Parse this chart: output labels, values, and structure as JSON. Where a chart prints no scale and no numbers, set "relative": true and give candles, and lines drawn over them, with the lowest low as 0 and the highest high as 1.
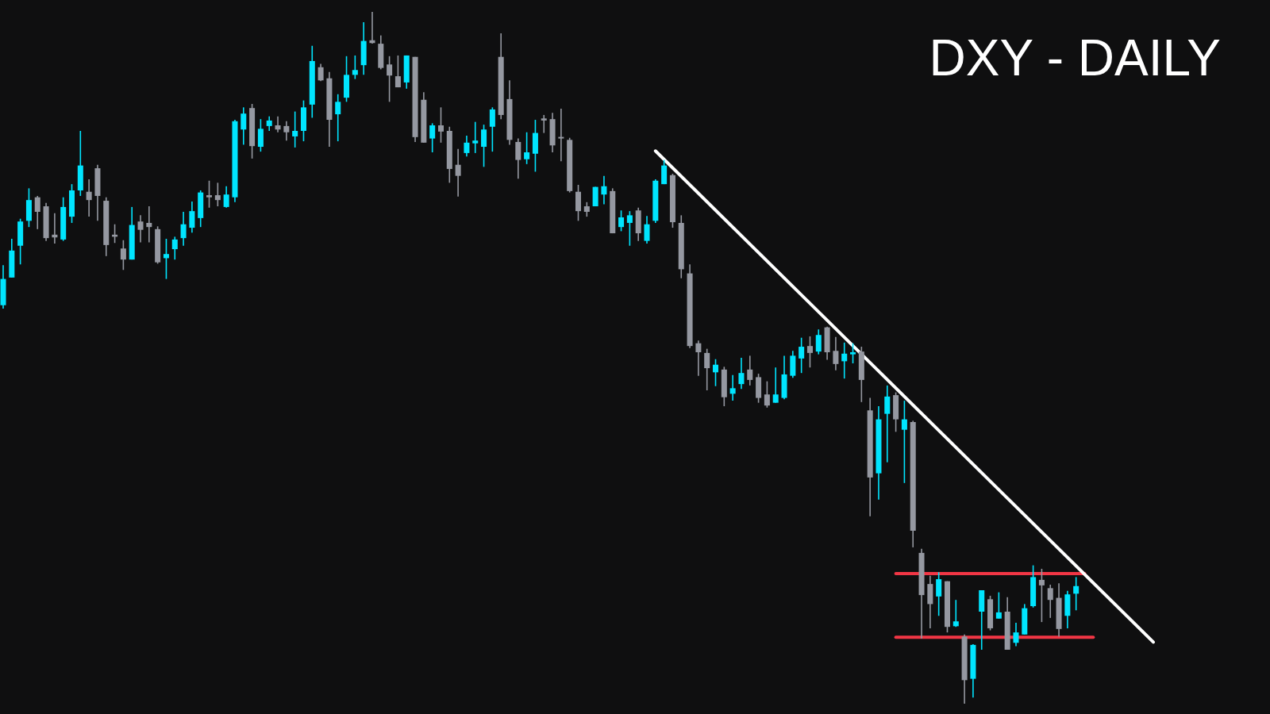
{
  "chart_data": {
    "type": "candlestick",
    "title": "DXY - DAILY",
    "relative": true,
    "tick_labels": false,
    "grid": false,
    "legend": false,
    "categories": [
      null,
      null,
      null,
      null,
      null,
      null,
      null,
      null,
      null,
      null,
      null,
      null,
      null,
      null,
      null,
      null,
      null,
      null,
      null,
      null,
      null,
      null,
      null,
      null,
      null,
      null,
      null,
      null,
      null,
      null,
      null,
      null,
      null,
      null,
      null,
      null,
      null,
      null,
      null,
      null,
      null,
      null,
      null,
      null,
      null,
      null,
      null,
      null,
      null,
      null,
      null,
      null,
      null,
      null,
      null,
      null,
      null,
      null,
      null,
      null,
      null,
      null,
      null,
      null,
      null,
      null,
      null,
      null,
      null,
      null,
      null,
      null,
      null,
      null,
      null,
      null,
      null,
      null,
      null,
      null,
      null,
      null,
      null,
      null,
      null,
      null,
      null,
      null,
      null,
      null,
      null,
      null,
      null,
      null,
      null,
      null,
      null,
      null,
      null,
      null,
      null,
      null,
      null,
      null,
      null,
      null,
      null,
      null,
      null,
      null,
      null,
      null,
      null,
      null,
      null,
      null,
      null,
      null,
      null,
      null,
      null,
      null,
      null,
      null,
      null,
      null,
      null,
      null,
      null,
      null,
      null,
      null,
      null,
      null,
      null
    ],
    "ohlc": [
      [
        0.576,
        0.634,
        0.571,
        0.614
      ],
      [
        0.616,
        0.672,
        0.616,
        0.655
      ],
      [
        0.662,
        0.701,
        0.635,
        0.697
      ],
      [
        0.698,
        0.745,
        0.689,
        0.728
      ],
      [
        0.732,
        0.734,
        0.686,
        0.711
      ],
      [
        0.719,
        0.724,
        0.669,
        0.673
      ],
      [
        0.678,
        0.709,
        0.665,
        0.674
      ],
      [
        0.671,
        0.732,
        0.669,
        0.718
      ],
      [
        0.704,
        0.751,
        0.695,
        0.742
      ],
      [
        0.742,
        0.828,
        0.734,
        0.778
      ],
      [
        0.74,
        0.758,
        0.704,
        0.728
      ],
      [
        0.774,
        0.779,
        0.698,
        0.734
      ],
      [
        0.727,
        0.732,
        0.647,
        0.663
      ],
      [
        0.678,
        0.693,
        0.666,
        0.675
      ],
      [
        0.658,
        0.67,
        0.627,
        0.642
      ],
      [
        0.642,
        0.718,
        0.642,
        0.692
      ],
      [
        0.697,
        0.706,
        0.667,
        0.685
      ],
      [
        0.695,
        0.719,
        0.667,
        0.689
      ],
      [
        0.686,
        0.69,
        0.636,
        0.638
      ],
      [
        0.644,
        0.672,
        0.614,
        0.65
      ],
      [
        0.657,
        0.675,
        0.642,
        0.671
      ],
      [
        0.673,
        0.711,
        0.662,
        0.693
      ],
      [
        0.688,
        0.726,
        0.681,
        0.712
      ],
      [
        0.702,
        0.742,
        0.689,
        0.739
      ],
      [
        0.735,
        0.756,
        0.717,
        0.732
      ],
      [
        0.735,
        0.753,
        0.719,
        0.728
      ],
      [
        0.718,
        0.748,
        0.717,
        0.736
      ],
      [
        0.732,
        0.844,
        0.725,
        0.842
      ],
      [
        0.83,
        0.862,
        0.808,
        0.853
      ],
      [
        0.861,
        0.867,
        0.788,
        0.806
      ],
      [
        0.805,
        0.845,
        0.798,
        0.831
      ],
      [
        0.835,
        0.849,
        0.828,
        0.843
      ],
      [
        0.836,
        0.849,
        0.826,
        0.83
      ],
      [
        0.835,
        0.842,
        0.814,
        0.826
      ],
      [
        0.82,
        0.856,
        0.804,
        0.828
      ],
      [
        0.828,
        0.872,
        0.813,
        0.862
      ],
      [
        0.866,
        0.951,
        0.847,
        0.929
      ],
      [
        0.92,
        0.925,
        0.9,
        0.901
      ],
      [
        0.904,
        0.913,
        0.805,
        0.844
      ],
      [
        0.852,
        0.881,
        0.813,
        0.87
      ],
      [
        0.876,
        0.936,
        0.87,
        0.909
      ],
      [
        0.909,
        0.937,
        0.903,
        0.916
      ],
      [
        0.923,
        0.985,
        0.909,
        0.958
      ],
      [
        0.959,
        1,
        0.954,
        0.955
      ],
      [
        0.954,
        0.966,
        0.917,
        0.919
      ],
      [
        0.924,
        0.936,
        0.87,
        0.908
      ],
      [
        0.907,
        0.937,
        0.891,
        0.891
      ],
      [
        0.898,
        0.937,
        0.889,
        0.937
      ],
      [
        0.935,
        0.935,
        0.812,
        0.819
      ],
      [
        0.873,
        0.884,
        0.811,
        0.811
      ],
      [
        0.817,
        0.839,
        0.797,
        0.836
      ],
      [
        0.836,
        0.862,
        0.811,
        0.827
      ],
      [
        0.828,
        0.834,
        0.753,
        0.773
      ],
      [
        0.779,
        0.802,
        0.733,
        0.763
      ],
      [
        0.796,
        0.821,
        0.791,
        0.811
      ],
      [
        0.81,
        0.841,
        0.796,
        0.814
      ],
      [
        0.805,
        0.837,
        0.776,
        0.83
      ],
      [
        0.834,
        0.862,
        0.798,
        0.859
      ],
      [
        0.935,
        0.969,
        0.845,
        0.851
      ],
      [
        0.874,
        0.901,
        0.808,
        0.815
      ],
      [
        0.812,
        0.817,
        0.759,
        0.786
      ],
      [
        0.787,
        0.826,
        0.78,
        0.797
      ],
      [
        0.795,
        0.844,
        0.769,
        0.825
      ],
      [
        0.846,
        0.851,
        0.825,
        0.843
      ],
      [
        0.845,
        0.854,
        0.797,
        0.807
      ],
      [
        0.818,
        0.86,
        0.784,
        0.817
      ],
      [
        0.815,
        0.818,
        0.739,
        0.741
      ],
      [
        0.74,
        0.75,
        0.698,
        0.712
      ],
      [
        0.719,
        0.725,
        0.704,
        0.711
      ],
      [
        0.719,
        0.747,
        0.719,
        0.747
      ],
      [
        0.736,
        0.763,
        0.722,
        0.748
      ],
      [
        0.741,
        0.745,
        0.68,
        0.68
      ],
      [
        0.689,
        0.713,
        0.683,
        0.703
      ],
      [
        0.695,
        0.712,
        0.662,
        0.706
      ],
      [
        0.713,
        0.717,
        0.669,
        0.68
      ],
      [
        0.669,
        0.705,
        0.665,
        0.693
      ],
      [
        0.698,
        0.758,
        0.695,
        0.756
      ],
      [
        0.751,
        0.786,
        0.751,
        0.778
      ],
      [
        0.764,
        0.766,
        0.688,
        0.696
      ],
      [
        0.695,
        0.706,
        0.615,
        0.628
      ],
      [
        0.622,
        0.635,
        0.514,
        0.517
      ],
      [
        0.521,
        0.525,
        0.474,
        0.508
      ],
      [
        0.507,
        0.513,
        0.453,
        0.485
      ],
      [
        0.479,
        0.498,
        0.459,
        0.49
      ],
      [
        0.483,
        0.487,
        0.43,
        0.443
      ],
      [
        0.448,
        0.475,
        0.438,
        0.456
      ],
      [
        0.462,
        0.5,
        0.455,
        0.478
      ],
      [
        0.483,
        0.503,
        0.46,
        0.468
      ],
      [
        0.472,
        0.477,
        0.435,
        0.442
      ],
      [
        0.447,
        0.466,
        0.428,
        0.431
      ],
      [
        0.435,
        0.486,
        0.435,
        0.447
      ],
      [
        0.442,
        0.503,
        0.44,
        0.476
      ],
      [
        0.474,
        0.51,
        0.471,
        0.503
      ],
      [
        0.499,
        0.529,
        0.478,
        0.516
      ],
      [
        0.517,
        0.531,
        0.486,
        0.507
      ],
      [
        0.509,
        0.541,
        0.505,
        0.533
      ],
      [
        0.544,
        0.545,
        0.497,
        0.508
      ],
      [
        0.51,
        0.53,
        0.482,
        0.491
      ],
      [
        0.495,
        0.522,
        0.47,
        0.506
      ],
      [
        0.505,
        0.521,
        0.492,
        0.508
      ],
      [
        0.509,
        0.516,
        0.436,
        0.468
      ],
      [
        0.424,
        0.442,
        0.271,
        0.327
      ],
      [
        0.333,
        0.43,
        0.295,
        0.411
      ],
      [
        0.419,
        0.46,
        0.349,
        0.444
      ],
      [
        0.446,
        0.45,
        0.393,
        0.411
      ],
      [
        0.396,
        0.438,
        0.319,
        0.411
      ],
      [
        0.407,
        0.409,
        0.226,
        0.25
      ],
      [
        0.218,
        0.224,
        0.094,
        0.157
      ],
      [
        0.173,
        0.185,
        0.109,
        0.144
      ],
      [
        0.155,
        0.19,
        0.127,
        0.18
      ],
      [
        0.177,
        0.177,
        0.103,
        0.111
      ],
      [
        0.112,
        0.15,
        0.111,
        0.119
      ],
      [
        0.097,
        0.1,
        0,
        0.034
      ],
      [
        0.036,
        0.086,
        0.009,
        0.085
      ],
      [
        0.133,
        0.164,
        0.078,
        0.164
      ],
      [
        0.151,
        0.156,
        0.106,
        0.109
      ],
      [
        0.123,
        0.161,
        0.123,
        0.132
      ],
      [
        0.133,
        0.154,
        0.078,
        0.078
      ],
      [
        0.088,
        0.117,
        0.083,
        0.103
      ],
      [
        0.1,
        0.144,
        0.1,
        0.138
      ],
      [
        0.141,
        0.2,
        0.139,
        0.183
      ],
      [
        0.179,
        0.195,
        0.118,
        0.171
      ],
      [
        0.167,
        0.172,
        0.124,
        0.15
      ],
      [
        0.153,
        0.174,
        0.097,
        0.108
      ],
      [
        0.127,
        0.163,
        0.109,
        0.158
      ],
      [
        0.159,
        0.183,
        0.135,
        0.17
      ],
      null,
      null,
      null,
      null,
      null,
      null,
      null,
      null,
      null
    ],
    "colors": [
      "#00e5ff",
      "#00e5ff",
      "#00e5ff",
      "#00e5ff",
      "#9598a1",
      "#9598a1",
      "#9598a1",
      "#00e5ff",
      "#00e5ff",
      "#00e5ff",
      "#9598a1",
      "#9598a1",
      "#9598a1",
      "#9598a1",
      "#9598a1",
      "#00e5ff",
      "#9598a1",
      "#9598a1",
      "#9598a1",
      "#00e5ff",
      "#00e5ff",
      "#00e5ff",
      "#00e5ff",
      "#00e5ff",
      "#9598a1",
      "#9598a1",
      "#00e5ff",
      "#00e5ff",
      "#00e5ff",
      "#9598a1",
      "#00e5ff",
      "#00e5ff",
      "#9598a1",
      "#9598a1",
      "#00e5ff",
      "#00e5ff",
      "#00e5ff",
      "#9598a1",
      "#9598a1",
      "#00e5ff",
      "#00e5ff",
      "#00e5ff",
      "#00e5ff",
      "#9598a1",
      "#9598a1",
      "#9598a1",
      "#9598a1",
      "#00e5ff",
      "#9598a1",
      "#9598a1",
      "#00e5ff",
      "#9598a1",
      "#9598a1",
      "#9598a1",
      "#00e5ff",
      "#00e5ff",
      "#00e5ff",
      "#00e5ff",
      "#9598a1",
      "#9598a1",
      "#9598a1",
      "#00e5ff",
      "#00e5ff",
      "#9598a1",
      "#9598a1",
      "#9598a1",
      "#9598a1",
      "#9598a1",
      "#9598a1",
      "#00e5ff",
      "#00e5ff",
      "#9598a1",
      "#00e5ff",
      "#00e5ff",
      "#9598a1",
      "#00e5ff",
      "#00e5ff",
      "#00e5ff",
      "#9598a1",
      "#9598a1",
      "#9598a1",
      "#9598a1",
      "#9598a1",
      "#00e5ff",
      "#9598a1",
      "#00e5ff",
      "#00e5ff",
      "#9598a1",
      "#9598a1",
      "#9598a1",
      "#00e5ff",
      "#00e5ff",
      "#00e5ff",
      "#00e5ff",
      "#9598a1",
      "#00e5ff",
      "#9598a1",
      "#9598a1",
      "#00e5ff",
      "#00e5ff",
      "#9598a1",
      "#9598a1",
      "#00e5ff",
      "#00e5ff",
      "#9598a1",
      "#00e5ff",
      "#9598a1",
      "#9598a1",
      "#9598a1",
      "#00e5ff",
      "#9598a1",
      "#00e5ff",
      "#9598a1",
      "#00e5ff",
      "#00e5ff",
      "#9598a1",
      "#00e5ff",
      "#9598a1",
      "#00e5ff",
      "#00e5ff",
      "#00e5ff",
      "#9598a1",
      "#9598a1",
      "#9598a1",
      "#00e5ff",
      "#00e5ff",
      null,
      null,
      null,
      null,
      null,
      null,
      null,
      null,
      null
    ],
    "series": [
      {
        "type": "line",
        "color": "#ffffff",
        "values": [
          null,
          null,
          null,
          null,
          null,
          null,
          null,
          null,
          null,
          null,
          null,
          null,
          null,
          null,
          null,
          null,
          null,
          null,
          null,
          null,
          null,
          null,
          null,
          null,
          null,
          null,
          null,
          null,
          null,
          null,
          null,
          null,
          null,
          null,
          null,
          null,
          null,
          null,
          null,
          null,
          null,
          null,
          null,
          null,
          null,
          null,
          null,
          null,
          null,
          null,
          null,
          null,
          null,
          null,
          null,
          null,
          null,
          null,
          null,
          null,
          null,
          null,
          null,
          null,
          null,
          null,
          null,
          null,
          null,
          null,
          null,
          null,
          null,
          null,
          null,
          null,
          0.799,
          null,
          null,
          null,
          null,
          null,
          null,
          null,
          null,
          null,
          null,
          null,
          null,
          null,
          null,
          null,
          null,
          null,
          null,
          null,
          null,
          null,
          null,
          null,
          null,
          null,
          null,
          null,
          null,
          null,
          null,
          null,
          null,
          null,
          null,
          null,
          null,
          null,
          null,
          null,
          null,
          null,
          null,
          null,
          null,
          null,
          null,
          null,
          null,
          null,
          null,
          null,
          null,
          null,
          null,
          null,
          null,
          null,
          0.089
        ]
      },
      {
        "type": "line",
        "color": "#f23645",
        "values": [
          null,
          null,
          null,
          null,
          null,
          null,
          null,
          null,
          null,
          null,
          null,
          null,
          null,
          null,
          null,
          null,
          null,
          null,
          null,
          null,
          null,
          null,
          null,
          null,
          null,
          null,
          null,
          null,
          null,
          null,
          null,
          null,
          null,
          null,
          null,
          null,
          null,
          null,
          null,
          null,
          null,
          null,
          null,
          null,
          null,
          null,
          null,
          null,
          null,
          null,
          null,
          null,
          null,
          null,
          null,
          null,
          null,
          null,
          null,
          null,
          null,
          null,
          null,
          null,
          null,
          null,
          null,
          null,
          null,
          null,
          null,
          null,
          null,
          null,
          null,
          null,
          null,
          null,
          null,
          null,
          null,
          null,
          null,
          null,
          null,
          null,
          null,
          null,
          null,
          null,
          null,
          null,
          null,
          null,
          null,
          null,
          null,
          null,
          null,
          null,
          null,
          null,
          null,
          null,
          0.188,
          null,
          null,
          null,
          null,
          null,
          null,
          null,
          null,
          null,
          null,
          null,
          null,
          null,
          null,
          null,
          null,
          null,
          null,
          null,
          null,
          null,
          0.188,
          null,
          null,
          null,
          null,
          null,
          null,
          null,
          null
        ]
      },
      {
        "type": "line",
        "color": "#f23645",
        "values": [
          null,
          null,
          null,
          null,
          null,
          null,
          null,
          null,
          null,
          null,
          null,
          null,
          null,
          null,
          null,
          null,
          null,
          null,
          null,
          null,
          null,
          null,
          null,
          null,
          null,
          null,
          null,
          null,
          null,
          null,
          null,
          null,
          null,
          null,
          null,
          null,
          null,
          null,
          null,
          null,
          null,
          null,
          null,
          null,
          null,
          null,
          null,
          null,
          null,
          null,
          null,
          null,
          null,
          null,
          null,
          null,
          null,
          null,
          null,
          null,
          null,
          null,
          null,
          null,
          null,
          null,
          null,
          null,
          null,
          null,
          null,
          null,
          null,
          null,
          null,
          null,
          null,
          null,
          null,
          null,
          null,
          null,
          null,
          null,
          null,
          null,
          null,
          null,
          null,
          null,
          null,
          null,
          null,
          null,
          null,
          null,
          null,
          null,
          null,
          null,
          null,
          null,
          null,
          null,
          0.096,
          null,
          null,
          null,
          null,
          null,
          null,
          null,
          null,
          null,
          null,
          null,
          null,
          null,
          null,
          null,
          null,
          null,
          null,
          null,
          null,
          null,
          null,
          0.096,
          null,
          null,
          null,
          null,
          null,
          null,
          null
        ]
      }
    ]
  }
}
